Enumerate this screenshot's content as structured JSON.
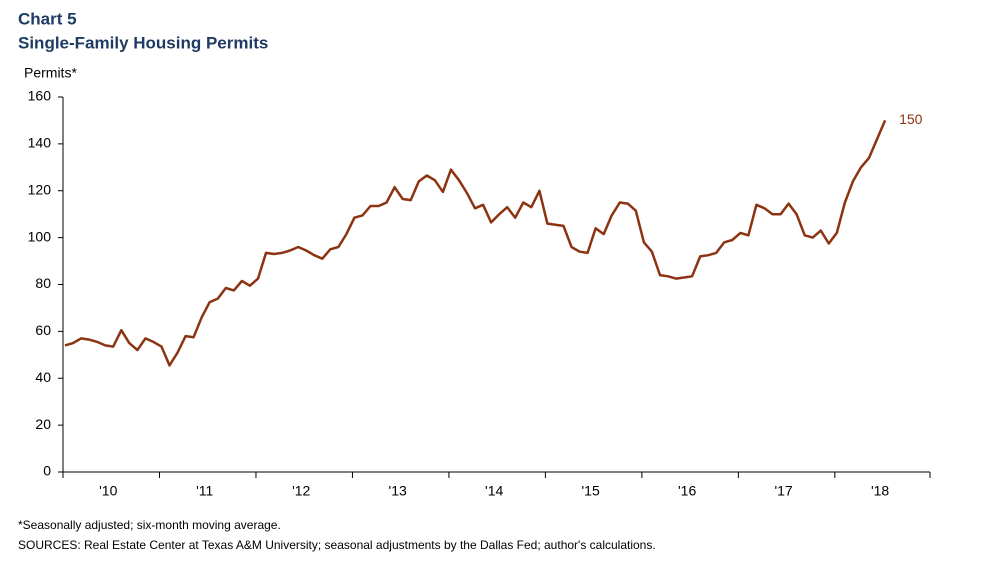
{
  "chart_data": {
    "type": "line",
    "title": "Chart 5",
    "subtitle": "Single-Family Housing Permits",
    "y_label": "Permits*",
    "footnote": "*Seasonally adjusted; six-month moving average.",
    "source": "SOURCES: Real Estate Center at Texas A&M University; seasonal adjustments by the Dallas Fed; author's calculations.",
    "categories": [
      null,
      null,
      null,
      null,
      null,
      null,
      "'10",
      null,
      null,
      null,
      null,
      null,
      null,
      null,
      null,
      null,
      null,
      null,
      "'11",
      null,
      null,
      null,
      null,
      null,
      null,
      null,
      null,
      null,
      null,
      null,
      "'12",
      null,
      null,
      null,
      null,
      null,
      null,
      null,
      null,
      null,
      null,
      null,
      "'13",
      null,
      null,
      null,
      null,
      null,
      null,
      null,
      null,
      null,
      null,
      null,
      "'14",
      null,
      null,
      null,
      null,
      null,
      null,
      null,
      null,
      null,
      null,
      null,
      "'15",
      null,
      null,
      null,
      null,
      null,
      null,
      null,
      null,
      null,
      null,
      null,
      "'16",
      null,
      null,
      null,
      null,
      null,
      null,
      null,
      null,
      null,
      null,
      null,
      "'17",
      null,
      null,
      null,
      null,
      null,
      null,
      null,
      null,
      null,
      null,
      null,
      "'18"
    ],
    "series": [
      {
        "name": "Permits",
        "color": "#8c3412",
        "values": [
          54,
          55,
          57,
          56.5,
          55.5,
          54,
          53.5,
          60.5,
          55,
          52,
          57,
          55.5,
          53.5,
          45.5,
          51,
          58,
          57.5,
          66,
          72.5,
          74,
          78.5,
          77.5,
          81.5,
          79.5,
          82.5,
          93.5,
          93,
          93.5,
          94.5,
          96,
          94.5,
          92.5,
          91,
          95,
          96,
          101.5,
          108.5,
          109.5,
          113.5,
          113.5,
          115,
          121.5,
          116.5,
          116,
          124,
          126.5,
          124.5,
          119.5,
          129,
          124.5,
          119,
          112.5,
          114,
          106.5,
          110,
          113,
          108.5,
          115,
          113,
          120,
          106,
          105.5,
          105,
          96,
          94,
          93.5,
          104,
          101.5,
          109.5,
          115,
          114.5,
          111.5,
          98,
          94,
          84,
          83.5,
          82.5,
          83,
          83.5,
          92,
          92.5,
          93.5,
          98,
          99,
          102,
          101,
          114,
          112.5,
          110,
          110,
          114.5,
          110,
          101,
          100,
          103,
          97.5,
          102,
          115,
          124,
          130,
          134,
          142,
          150
        ]
      }
    ],
    "ylim": [
      0,
      160
    ],
    "yticks": [
      0,
      20,
      40,
      60,
      80,
      100,
      120,
      140,
      160
    ],
    "grid": false
  }
}
